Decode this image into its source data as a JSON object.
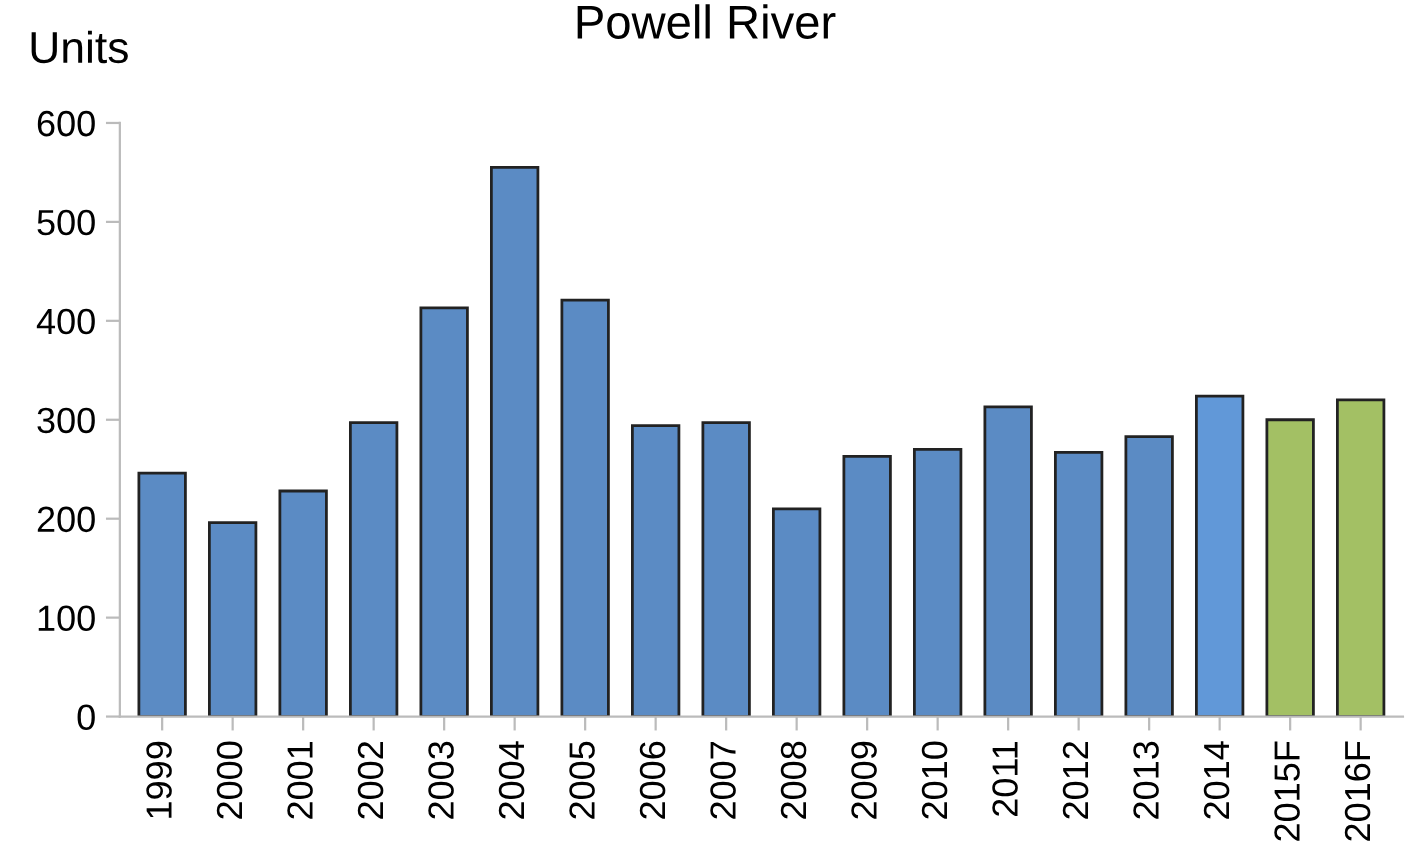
{
  "chart_data": {
    "type": "bar",
    "title": "Powell River",
    "ylabel": "Units",
    "categories": [
      "1999",
      "2000",
      "2001",
      "2002",
      "2003",
      "2004",
      "2005",
      "2006",
      "2007",
      "2008",
      "2009",
      "2010",
      "2011",
      "2012",
      "2013",
      "2014",
      "2015F",
      "2016F"
    ],
    "values": [
      246,
      196,
      228,
      297,
      413,
      555,
      421,
      294,
      297,
      210,
      263,
      270,
      313,
      267,
      283,
      324,
      300,
      320
    ],
    "colors": [
      "#5b8bc4",
      "#5b8bc4",
      "#5b8bc4",
      "#5b8bc4",
      "#5b8bc4",
      "#5b8bc4",
      "#5b8bc4",
      "#5b8bc4",
      "#5b8bc4",
      "#5b8bc4",
      "#5b8bc4",
      "#5b8bc4",
      "#5b8bc4",
      "#5b8bc4",
      "#5b8bc4",
      "#6198d8",
      "#a3c064",
      "#a3c064"
    ],
    "ylim": [
      0,
      600
    ],
    "yticks": [
      0,
      100,
      200,
      300,
      400,
      500,
      600
    ],
    "grid": false,
    "legend": false
  }
}
